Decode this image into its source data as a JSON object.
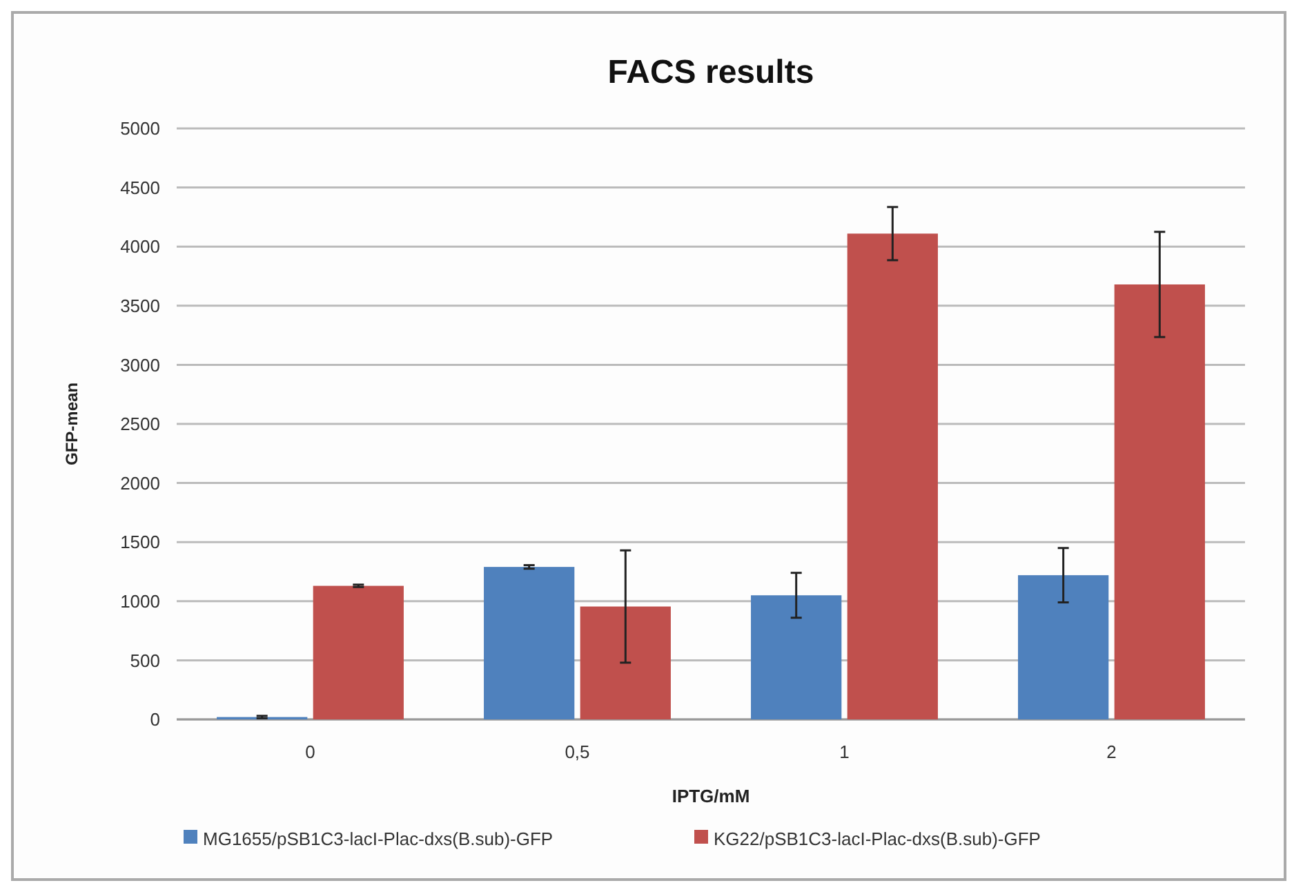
{
  "chart_data": {
    "type": "bar",
    "title": "FACS results",
    "xlabel": "IPTG/mM",
    "ylabel": "GFP-mean",
    "categories": [
      "0",
      "0,5",
      "1",
      "2"
    ],
    "series": [
      {
        "name": "MG1655/pSB1C3-lacI-Plac-dxs(B.sub)-GFP",
        "color": "#4f81bd",
        "values": [
          20,
          1290,
          1050,
          1220
        ],
        "errors": [
          10,
          15,
          190,
          230
        ]
      },
      {
        "name": "KG22/pSB1C3-lacI-Plac-dxs(B.sub)-GFP",
        "color": "#c0504d",
        "values": [
          1130,
          955,
          4110,
          3680
        ],
        "errors": [
          10,
          475,
          225,
          445
        ]
      }
    ],
    "ylim": [
      0,
      5000
    ],
    "yticks": [
      0,
      500,
      1000,
      1500,
      2000,
      2500,
      3000,
      3500,
      4000,
      4500,
      5000
    ],
    "grid": "y",
    "legend": "bottom"
  }
}
